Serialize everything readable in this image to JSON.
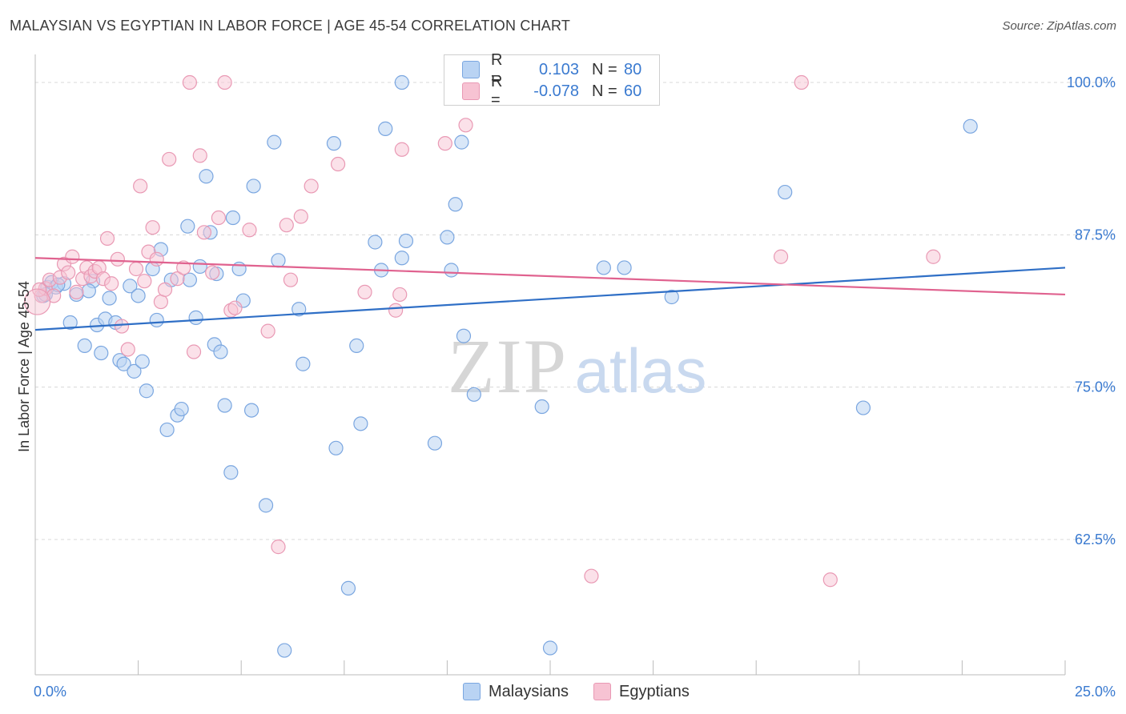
{
  "title": "MALAYSIAN VS EGYPTIAN IN LABOR FORCE | AGE 45-54 CORRELATION CHART",
  "source": "Source: ZipAtlas.com",
  "watermark": {
    "zip": "ZIP",
    "atlas": "atlas"
  },
  "colors": {
    "blue_fill": "#b9d3f3",
    "blue_stroke": "#7aa6e0",
    "blue_line": "#2f6fc6",
    "pink_fill": "#f7c3d3",
    "pink_stroke": "#e999b4",
    "pink_line": "#e0628f",
    "axis_text": "#3a7ad0",
    "grid": "#d8d8d8"
  },
  "legend": {
    "r_label": "R =",
    "n_label": "N =",
    "rows": [
      {
        "series": "Malaysians",
        "r": "0.103",
        "n": "80"
      },
      {
        "series": "Egyptians",
        "r": "-0.078",
        "n": "60"
      }
    ]
  },
  "bottom_legend": [
    "Malaysians",
    "Egyptians"
  ],
  "chart_data": {
    "type": "scatter",
    "title": "MALAYSIAN VS EGYPTIAN IN LABOR FORCE | AGE 45-54 CORRELATION CHART",
    "xlabel": "",
    "ylabel": "In Labor Force | Age 45-54",
    "xlim": [
      0,
      25
    ],
    "ylim": [
      51.4,
      102.3
    ],
    "x_ticks": [
      0,
      2.5,
      5,
      7.5,
      10,
      12.5,
      15,
      17.5,
      20,
      22.5,
      25
    ],
    "x_tick_labels": [
      {
        "x": 0,
        "label": "0.0%"
      },
      {
        "x": 25,
        "label": "25.0%"
      }
    ],
    "y_ticks": [
      {
        "y": 62.5,
        "label": "62.5%"
      },
      {
        "y": 75.0,
        "label": "75.0%"
      },
      {
        "y": 87.5,
        "label": "87.5%"
      },
      {
        "y": 100.0,
        "label": "100.0%"
      }
    ],
    "grid": "horizontal dashed",
    "series": [
      {
        "name": "Malaysians",
        "color": "#b9d3f3",
        "trend": {
          "x": [
            0,
            25
          ],
          "y": [
            79.7,
            84.8
          ]
        },
        "points": [
          [
            0.2,
            82.5
          ],
          [
            0.3,
            83.2
          ],
          [
            0.4,
            83.6
          ],
          [
            0.5,
            83.2
          ],
          [
            0.7,
            83.5
          ],
          [
            0.85,
            80.3
          ],
          [
            1.0,
            82.6
          ],
          [
            1.2,
            78.4
          ],
          [
            1.4,
            83.7
          ],
          [
            1.5,
            80.1
          ],
          [
            1.6,
            77.8
          ],
          [
            1.7,
            80.6
          ],
          [
            1.8,
            82.3
          ],
          [
            1.95,
            80.3
          ],
          [
            2.05,
            77.2
          ],
          [
            2.15,
            76.9
          ],
          [
            2.3,
            83.3
          ],
          [
            2.4,
            76.3
          ],
          [
            2.5,
            82.5
          ],
          [
            2.6,
            77.1
          ],
          [
            2.7,
            74.7
          ],
          [
            2.85,
            84.7
          ],
          [
            2.95,
            80.5
          ],
          [
            3.05,
            86.3
          ],
          [
            3.2,
            71.5
          ],
          [
            3.3,
            83.8
          ],
          [
            3.45,
            72.7
          ],
          [
            3.55,
            73.2
          ],
          [
            3.7,
            88.2
          ],
          [
            3.75,
            83.8
          ],
          [
            3.9,
            80.7
          ],
          [
            4.0,
            84.9
          ],
          [
            4.15,
            92.3
          ],
          [
            4.25,
            87.7
          ],
          [
            4.35,
            78.5
          ],
          [
            4.5,
            77.9
          ],
          [
            4.6,
            73.5
          ],
          [
            4.75,
            68.0
          ],
          [
            4.8,
            88.9
          ],
          [
            4.95,
            84.7
          ],
          [
            5.05,
            82.1
          ],
          [
            5.25,
            73.1
          ],
          [
            5.3,
            91.5
          ],
          [
            5.6,
            65.3
          ],
          [
            5.8,
            95.1
          ],
          [
            5.9,
            85.4
          ],
          [
            6.05,
            53.4
          ],
          [
            6.4,
            81.4
          ],
          [
            6.5,
            76.9
          ],
          [
            7.25,
            95.0
          ],
          [
            7.3,
            70.0
          ],
          [
            7.6,
            58.5
          ],
          [
            7.8,
            78.4
          ],
          [
            7.9,
            72.0
          ],
          [
            8.25,
            86.9
          ],
          [
            8.4,
            84.6
          ],
          [
            8.5,
            96.2
          ],
          [
            8.9,
            85.6
          ],
          [
            9.0,
            87.0
          ],
          [
            8.9,
            100.0
          ],
          [
            9.7,
            70.4
          ],
          [
            10.0,
            87.3
          ],
          [
            10.2,
            90.0
          ],
          [
            10.35,
            95.1
          ],
          [
            10.4,
            79.2
          ],
          [
            10.65,
            74.4
          ],
          [
            11.25,
            100.1
          ],
          [
            12.3,
            73.4
          ],
          [
            12.5,
            53.6
          ],
          [
            13.8,
            84.8
          ],
          [
            14.3,
            84.8
          ],
          [
            15.45,
            82.4
          ],
          [
            18.2,
            91.0
          ],
          [
            20.1,
            73.3
          ],
          [
            22.7,
            96.4
          ],
          [
            0.25,
            82.6
          ],
          [
            10.1,
            84.6
          ],
          [
            0.55,
            83.4
          ],
          [
            1.3,
            82.9
          ],
          [
            4.4,
            84.3
          ]
        ]
      },
      {
        "name": "Egyptians",
        "color": "#f7c3d3",
        "trend": {
          "x": [
            0,
            25
          ],
          "y": [
            85.6,
            82.6
          ]
        },
        "points": [
          [
            0.15,
            82.5
          ],
          [
            0.25,
            83.1
          ],
          [
            0.35,
            83.8
          ],
          [
            0.45,
            82.5
          ],
          [
            0.6,
            84.0
          ],
          [
            0.7,
            85.1
          ],
          [
            0.8,
            84.4
          ],
          [
            0.9,
            85.7
          ],
          [
            1.0,
            82.8
          ],
          [
            1.15,
            83.9
          ],
          [
            1.25,
            84.8
          ],
          [
            1.35,
            84.1
          ],
          [
            1.45,
            84.5
          ],
          [
            1.55,
            84.8
          ],
          [
            1.65,
            83.9
          ],
          [
            1.75,
            87.2
          ],
          [
            1.85,
            83.5
          ],
          [
            2.0,
            85.5
          ],
          [
            2.1,
            80.0
          ],
          [
            2.25,
            78.1
          ],
          [
            2.45,
            84.7
          ],
          [
            2.55,
            91.5
          ],
          [
            2.65,
            83.7
          ],
          [
            2.75,
            86.1
          ],
          [
            2.85,
            88.1
          ],
          [
            2.95,
            85.5
          ],
          [
            3.05,
            82.0
          ],
          [
            3.15,
            83.0
          ],
          [
            3.25,
            93.7
          ],
          [
            3.45,
            83.9
          ],
          [
            3.6,
            84.8
          ],
          [
            3.75,
            100.0
          ],
          [
            3.85,
            77.9
          ],
          [
            4.0,
            94.0
          ],
          [
            4.1,
            87.7
          ],
          [
            4.3,
            84.4
          ],
          [
            4.45,
            88.9
          ],
          [
            4.6,
            100.0
          ],
          [
            4.75,
            81.3
          ],
          [
            4.85,
            81.5
          ],
          [
            5.2,
            87.9
          ],
          [
            5.65,
            79.6
          ],
          [
            5.9,
            61.9
          ],
          [
            6.1,
            88.3
          ],
          [
            6.2,
            83.8
          ],
          [
            6.45,
            89.0
          ],
          [
            6.7,
            91.5
          ],
          [
            7.35,
            93.3
          ],
          [
            8.0,
            82.8
          ],
          [
            8.75,
            81.3
          ],
          [
            8.85,
            82.6
          ],
          [
            8.9,
            94.5
          ],
          [
            9.95,
            95.0
          ],
          [
            10.45,
            96.5
          ],
          [
            13.5,
            59.5
          ],
          [
            18.1,
            85.7
          ],
          [
            18.6,
            100.0
          ],
          [
            19.3,
            59.2
          ],
          [
            21.8,
            85.7
          ],
          [
            0.1,
            83.0
          ]
        ]
      }
    ]
  }
}
